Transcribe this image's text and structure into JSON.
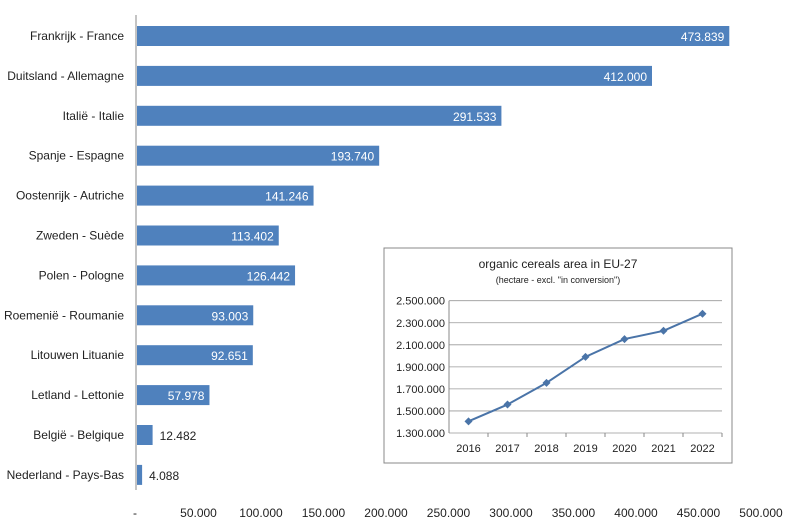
{
  "chart_data": [
    {
      "type": "bar",
      "orientation": "horizontal",
      "categories": [
        "Frankrijk - France",
        "Duitsland - Allemagne",
        "Italië - Italie",
        "Spanje - Espagne",
        "Oostenrijk - Autriche",
        "Zweden - Suède",
        "Polen - Pologne",
        "Roemenië - Roumanie",
        "Litouwen Lituanie",
        "Letland - Lettonie",
        "België - Belgique",
        "Nederland - Pays-Bas"
      ],
      "values": [
        473839,
        412000,
        291533,
        193740,
        141246,
        113402,
        126442,
        93003,
        92651,
        57978,
        12482,
        4088
      ],
      "value_labels": [
        "473.839",
        "412.000",
        "291.533",
        "193.740",
        "141.246",
        "113.402",
        "126.442",
        "93.003",
        "92.651",
        "57.978",
        "12.482",
        "4.088"
      ],
      "xlim": [
        0,
        500000
      ],
      "xticks": [
        "-",
        "50.000",
        "100.000",
        "150.000",
        "200.000",
        "250.000",
        "300.000",
        "350.000",
        "400.000",
        "450.000",
        "500.000"
      ],
      "grid": false,
      "color": "#4f81bd"
    },
    {
      "type": "line",
      "title": "organic cereals area in EU-27",
      "subtitle": "(hectare - excl. \"in conversion\")",
      "x": [
        "2016",
        "2017",
        "2018",
        "2019",
        "2020",
        "2021",
        "2022"
      ],
      "values": [
        1406000,
        1558000,
        1755000,
        1991000,
        2152000,
        2227000,
        2382000
      ],
      "ylim": [
        1300000,
        2500000
      ],
      "yticks": [
        "1.300.000",
        "1.500.000",
        "1.700.000",
        "1.900.000",
        "2.100.000",
        "2.300.000",
        "2.500.000"
      ],
      "grid": true,
      "marker": "diamond",
      "color": "#4a74a8"
    }
  ]
}
